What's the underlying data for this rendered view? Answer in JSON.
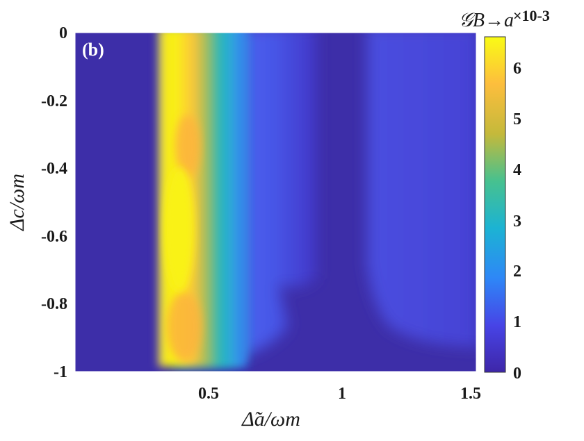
{
  "chart_data": {
    "type": "heatmap",
    "panel_label": "(b)",
    "xlabel": "Δ̃a/ωm",
    "ylabel": "Δc/ωm",
    "xlim": [
      0,
      1.5
    ],
    "ylim": [
      -1,
      0
    ],
    "x_ticks": [
      "0.5",
      "1",
      "1.5"
    ],
    "y_ticks": [
      "0",
      "-0.2",
      "-0.4",
      "-0.6",
      "-0.8",
      "-1"
    ],
    "colorbar": {
      "title": "𝒢B→a",
      "exponent": "×10-3",
      "range": [
        0,
        6.6
      ],
      "ticks": [
        "0",
        "1",
        "2",
        "3",
        "4",
        "5",
        "6"
      ],
      "colormap": "parula"
    },
    "colormap_stops": [
      "#3e26a8",
      "#4744e6",
      "#2e87f7",
      "#1cb3d3",
      "#47c18f",
      "#c4b93b",
      "#fdbe3d",
      "#f9fb15"
    ],
    "features": [
      {
        "x_range": [
          0.3,
          0.47
        ],
        "y_range": [
          -1,
          0
        ],
        "value": 6.3
      },
      {
        "x_range": [
          0.47,
          0.62
        ],
        "y_range": [
          -0.95,
          0
        ],
        "value": 3.5
      },
      {
        "x_range": [
          0.62,
          0.82
        ],
        "y_range": [
          -0.95,
          0
        ],
        "value": 1.2
      },
      {
        "x_range": [
          1.08,
          1.5
        ],
        "y_range": [
          -0.9,
          0
        ],
        "value": 0.5
      }
    ]
  }
}
